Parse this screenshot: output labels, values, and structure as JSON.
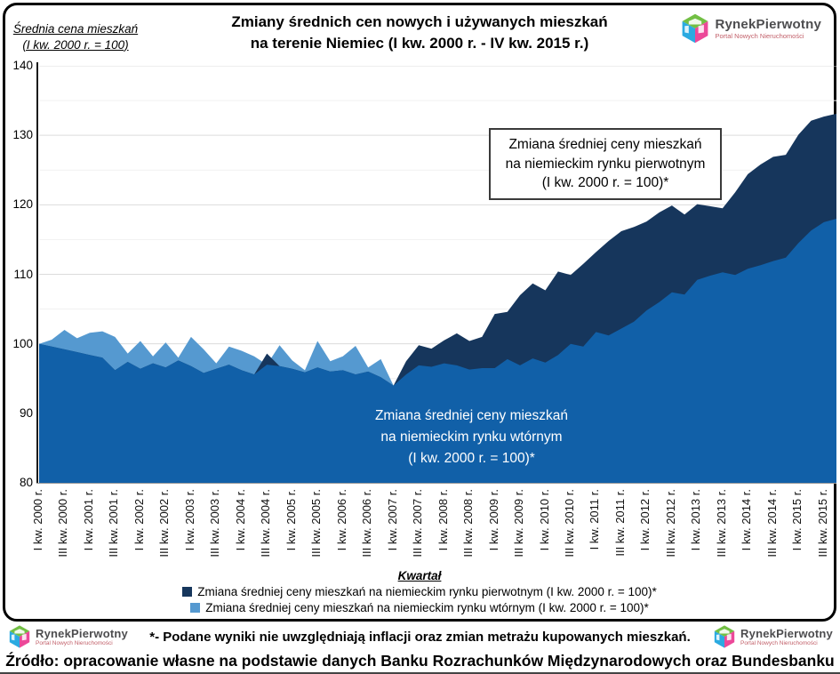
{
  "header": {
    "title_line1": "Zmiany średnich cen nowych i używanych mieszkań",
    "title_line2": "na terenie Niemiec (I kw. 2000 r. - IV kw. 2015 r.)",
    "y_axis_title_line1": "Średnia cena mieszkań",
    "y_axis_title_line2": "(I kw. 2000 r. = 100)"
  },
  "logo": {
    "name": "RynekPierwotny",
    "subtitle": "Portal Nowych Nieruchomości"
  },
  "annotations": {
    "primary_box_line1": "Zmiana średniej ceny mieszkań",
    "primary_box_line2": "na niemieckim rynku pierwotnym",
    "primary_box_line3": "(I kw. 2000 r. = 100)*",
    "secondary_line1": "Zmiana średniej ceny mieszkań",
    "secondary_line2": "na niemieckim rynku wtórnym",
    "secondary_line3": "(I kw. 2000 r. = 100)*"
  },
  "legend": {
    "items": [
      {
        "label": "Zmiana średniej ceny mieszkań na niemieckim rynku pierwotnym (I kw. 2000 r. = 100)*",
        "color": "#16365C"
      },
      {
        "label": "Zmiana średniej ceny mieszkań na niemieckim rynku wtórnym (I kw. 2000 r. = 100)*",
        "color": "#5599D0"
      }
    ]
  },
  "footer": {
    "footnote": "*- Podane wyniki nie uwzględniają inflacji oraz zmian metrażu kupowanych mieszkań.",
    "source": "Źródło: opracowanie własne na podstawie danych Banku Rozrachunków Międzynarodowych oraz Bundesbanku"
  },
  "chart_data": {
    "type": "area",
    "title": "Zmiany średnich cen nowych i używanych mieszkań na terenie Niemiec (I kw. 2000 r. - IV kw. 2015 r.)",
    "xlabel": "Kwartał",
    "ylabel": "Średnia cena mieszkań (I kw. 2000 r. = 100)",
    "ylim": [
      80,
      140
    ],
    "yticks": [
      80,
      90,
      100,
      110,
      120,
      130,
      140
    ],
    "x_frequency": "quarterly, I kw. 2000 r. – IV kw. 2015 r. (64 quarters); axis labels shown every second quarter",
    "x_tick_labels": [
      "I kw. 2000 r.",
      "III kw. 2000 r.",
      "I kw. 2001 r.",
      "III kw. 2001 r.",
      "I kw. 2002 r.",
      "III kw. 2002 r.",
      "I kw. 2003 r.",
      "III kw. 2003 r.",
      "I kw. 2004 r.",
      "III kw. 2004 r.",
      "I kw. 2005 r.",
      "III kw. 2005 r.",
      "I kw. 2006 r.",
      "III kw. 2006 r.",
      "I kw. 2007 r.",
      "III kw. 2007 r.",
      "I kw. 2008 r.",
      "III kw. 2008 r.",
      "I kw. 2009 r.",
      "III kw. 2009 r.",
      "I kw. 2010 r.",
      "III kw. 2010 r.",
      "I kw. 2011 r.",
      "III kw. 2011 r.",
      "I kw. 2012 r.",
      "III kw. 2012 r.",
      "I kw. 2013 r.",
      "III kw. 2013 r.",
      "I kw. 2014 r.",
      "III kw. 2014 r.",
      "I kw. 2015 r.",
      "III kw. 2015 r."
    ],
    "grid": true,
    "legend_position": "bottom",
    "overlap_fill_color": "#1160A8",
    "series": [
      {
        "name": "Zmiana średniej ceny mieszkań na niemieckim rynku pierwotnym (I kw. 2000 r. = 100)*",
        "color": "#16365C",
        "values": [
          100.0,
          99.6,
          99.2,
          98.8,
          98.4,
          98.0,
          96.2,
          97.4,
          96.4,
          97.2,
          96.6,
          97.6,
          96.8,
          95.8,
          96.4,
          97.0,
          96.2,
          95.6,
          98.6,
          96.8,
          96.4,
          95.9,
          96.6,
          96.0,
          96.2,
          95.6,
          96.0,
          95.2,
          94.0,
          97.5,
          99.8,
          99.3,
          100.5,
          101.5,
          100.4,
          101.0,
          104.3,
          104.6,
          107.0,
          108.7,
          107.7,
          110.4,
          109.9,
          111.5,
          113.2,
          114.8,
          116.2,
          116.8,
          117.6,
          118.9,
          119.9,
          118.6,
          120.1,
          119.8,
          119.5,
          121.8,
          124.4,
          125.8,
          126.9,
          127.2,
          130.1,
          132.1,
          132.7,
          133.1
        ]
      },
      {
        "name": "Zmiana średniej ceny mieszkań na niemieckim rynku wtórnym (I kw. 2000 r. = 100)*",
        "color": "#5599D0",
        "values": [
          100.0,
          100.6,
          102.0,
          100.8,
          101.6,
          101.8,
          101.0,
          98.6,
          100.4,
          98.2,
          100.2,
          98.0,
          101.0,
          99.2,
          97.2,
          99.6,
          99.0,
          98.2,
          97.0,
          99.8,
          97.6,
          96.2,
          100.4,
          97.5,
          98.2,
          99.7,
          96.6,
          97.8,
          94.0,
          95.6,
          96.9,
          96.7,
          97.2,
          96.9,
          96.3,
          96.5,
          96.5,
          97.8,
          96.9,
          97.9,
          97.3,
          98.4,
          100.0,
          99.6,
          101.7,
          101.2,
          102.2,
          103.2,
          104.8,
          106.0,
          107.4,
          107.1,
          109.2,
          109.8,
          110.3,
          109.9,
          110.8,
          111.3,
          111.9,
          112.4,
          114.5,
          116.3,
          117.5,
          118.0
        ]
      }
    ]
  }
}
